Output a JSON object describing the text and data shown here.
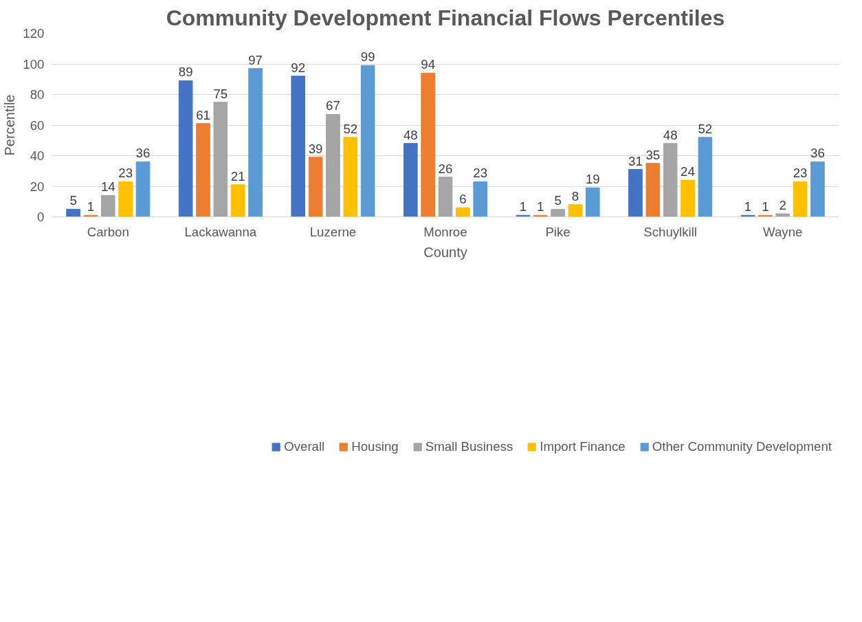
{
  "chart_data": {
    "type": "bar",
    "title": "Community Development Financial Flows Percentiles",
    "xlabel": "County",
    "ylabel": "Percentile",
    "categories": [
      "Carbon",
      "Lackawanna",
      "Luzerne",
      "Monroe",
      "Pike",
      "Schuylkill",
      "Wayne"
    ],
    "series": [
      {
        "name": "Overall",
        "color": "#4472c4",
        "values": [
          5,
          89,
          92,
          48,
          1,
          31,
          1
        ]
      },
      {
        "name": "Housing",
        "color": "#ed7d31",
        "values": [
          1,
          61,
          39,
          94,
          1,
          35,
          1
        ]
      },
      {
        "name": "Small Business",
        "color": "#a5a5a5",
        "values": [
          14,
          75,
          67,
          26,
          5,
          48,
          2
        ]
      },
      {
        "name": "Import Finance",
        "color": "#ffc000",
        "values": [
          23,
          21,
          52,
          6,
          8,
          24,
          23
        ]
      },
      {
        "name": "Other Community Development",
        "color": "#5b9bd5",
        "values": [
          36,
          97,
          99,
          23,
          19,
          52,
          36
        ]
      }
    ],
    "ylim": [
      0,
      120
    ],
    "yticks": [
      0,
      20,
      40,
      60,
      80,
      100,
      120
    ],
    "grid": "y",
    "legend": "bottom",
    "data_labels": true
  }
}
